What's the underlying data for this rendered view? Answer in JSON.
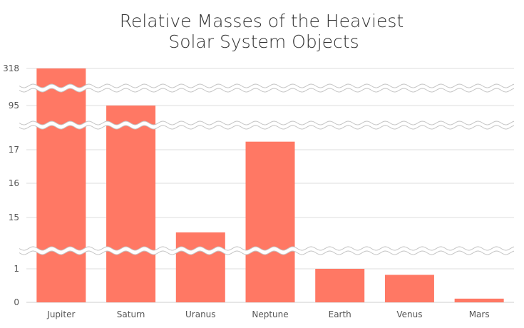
{
  "colors": {
    "bar": "#ff7864",
    "grid": "#dddddd",
    "axis": "#cccccc",
    "break_line": "#c4c4c4"
  },
  "chart_data": {
    "type": "bar",
    "title": [
      "Relative Masses of the Heaviest",
      "Solar System Objects"
    ],
    "categories": [
      "Jupiter",
      "Saturn",
      "Uranus",
      "Neptune",
      "Earth",
      "Venus",
      "Mars"
    ],
    "values": [
      318,
      95,
      14.6,
      17.2,
      1.0,
      0.82,
      0.11
    ],
    "ylim": [
      0,
      318
    ],
    "y_ticks": [
      "0",
      "1",
      "15",
      "16",
      "17",
      "95",
      "318"
    ],
    "axis_breaks": [
      [
        1.5,
        14.1
      ],
      [
        17.6,
        94.2
      ],
      [
        95.5,
        316.8
      ]
    ],
    "grid": true,
    "legend": "none"
  }
}
